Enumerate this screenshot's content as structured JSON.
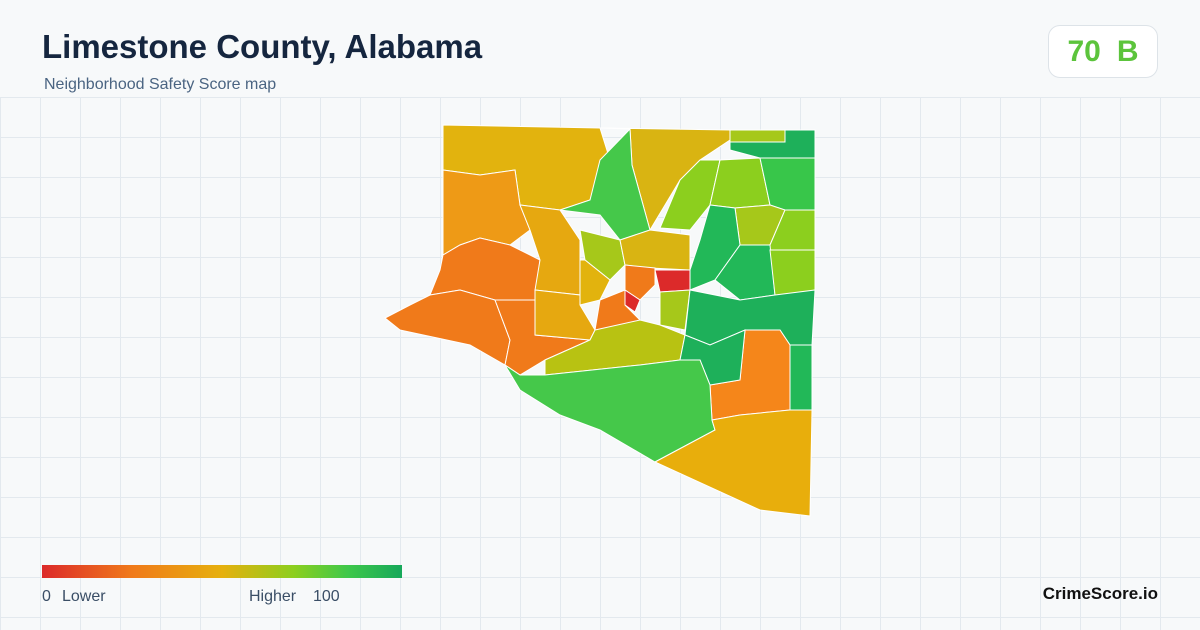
{
  "header": {
    "title": "Limestone County, Alabama",
    "subtitle": "Neighborhood Safety Score map"
  },
  "score": {
    "value": 70,
    "grade": "B"
  },
  "legend": {
    "min": 0,
    "min_label": "Lower",
    "max_label": "Higher",
    "max": 100
  },
  "footer": {
    "brand": "CrimeScore.io"
  }
}
